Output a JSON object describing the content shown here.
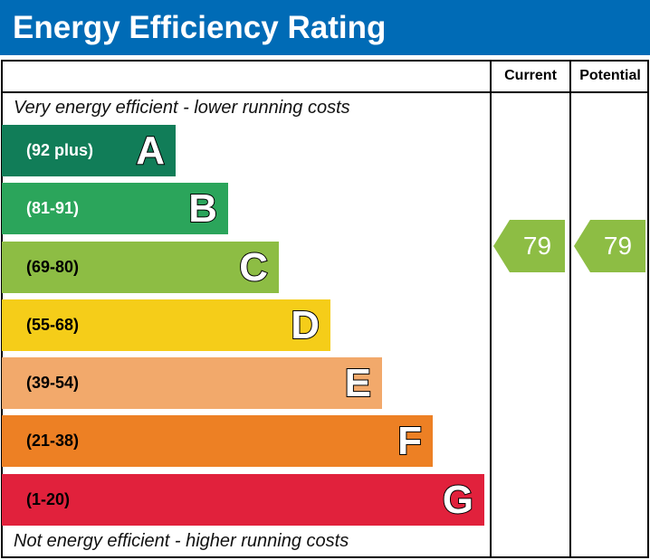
{
  "title": "Energy Efficiency Rating",
  "columns": {
    "current": "Current",
    "potential": "Potential"
  },
  "top_note": "Very energy efficient - lower running costs",
  "bottom_note": "Not energy efficient - higher running costs",
  "chart_data": {
    "type": "bar",
    "categories": [
      "A",
      "B",
      "C",
      "D",
      "E",
      "F",
      "G"
    ],
    "ranges": [
      "(92 plus)",
      "(81-91)",
      "(69-80)",
      "(55-68)",
      "(39-54)",
      "(21-38)",
      "(1-20)"
    ],
    "colors": [
      "#117d58",
      "#2ba55b",
      "#8dbd44",
      "#f5cd19",
      "#f2a96b",
      "#ed8024",
      "#e1213c"
    ],
    "text_colors": [
      "#ffffff",
      "#ffffff",
      "#000000",
      "#000000",
      "#000000",
      "#000000",
      "#000000"
    ],
    "current": {
      "value": "79",
      "band": "C"
    },
    "potential": {
      "value": "79",
      "band": "C"
    }
  }
}
